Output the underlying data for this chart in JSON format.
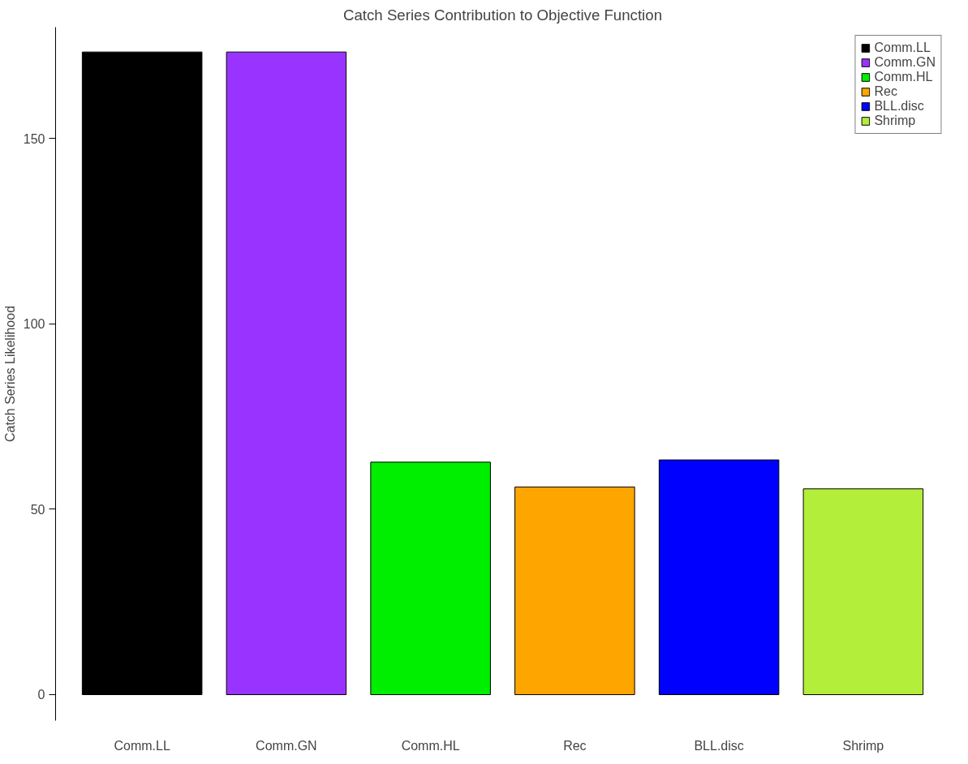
{
  "chart_data": {
    "type": "bar",
    "title": "Catch Series Contribution to Objective Function",
    "ylabel": "Catch Series Likelihood",
    "categories": [
      "Comm.LL",
      "Comm.GN",
      "Comm.HL",
      "Rec",
      "BLL.disc",
      "Shrimp"
    ],
    "stacked": true,
    "series": [
      {
        "name": "Comm.LL",
        "color": "#000000",
        "values": [
          173.3,
          null,
          null,
          null,
          null,
          null
        ]
      },
      {
        "name": "Comm.GN",
        "color": "#9933ff",
        "values": [
          null,
          173.3,
          null,
          null,
          null,
          null
        ]
      },
      {
        "name": "Comm.HL",
        "color": "#00ee00",
        "values": [
          null,
          null,
          62.7,
          null,
          null,
          null
        ]
      },
      {
        "name": "Rec",
        "color": "#ffa500",
        "values": [
          null,
          null,
          null,
          56.0,
          null,
          null
        ]
      },
      {
        "name": "BLL.disc",
        "color": "#0000ff",
        "values": [
          null,
          null,
          null,
          null,
          63.3,
          null
        ]
      },
      {
        "name": "Shrimp",
        "color": "#b3ee3a",
        "values": [
          null,
          null,
          null,
          null,
          null,
          55.5
        ]
      }
    ],
    "ylim": [
      -7,
      180
    ],
    "yticks": [
      0,
      50,
      100,
      150
    ],
    "grid": false,
    "legend": "top right"
  }
}
